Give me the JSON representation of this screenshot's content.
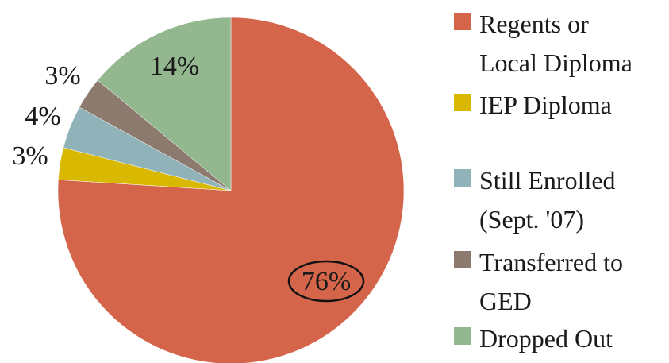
{
  "chart_data": {
    "type": "pie",
    "title": "",
    "legend_position": "right",
    "start_angle_deg": 0,
    "direction": "clockwise",
    "slices": [
      {
        "label_lines": [
          "Regents or",
          "Local Diploma"
        ],
        "value": 76,
        "value_label": "76%",
        "color": "#D4654A",
        "highlighted": true
      },
      {
        "label_lines": [
          "IEP Diploma"
        ],
        "value": 3,
        "value_label": "3%",
        "color": "#D8B800",
        "highlighted": false
      },
      {
        "label_lines": [
          "Still Enrolled",
          "(Sept. '07)"
        ],
        "value": 4,
        "value_label": "4%",
        "color": "#90B3BA",
        "highlighted": false
      },
      {
        "label_lines": [
          "Transferred to",
          "GED"
        ],
        "value": 3,
        "value_label": "3%",
        "color": "#8C7A6E",
        "highlighted": false
      },
      {
        "label_lines": [
          "Dropped Out"
        ],
        "value": 14,
        "value_label": "14%",
        "color": "#93B78E",
        "highlighted": false
      }
    ]
  }
}
